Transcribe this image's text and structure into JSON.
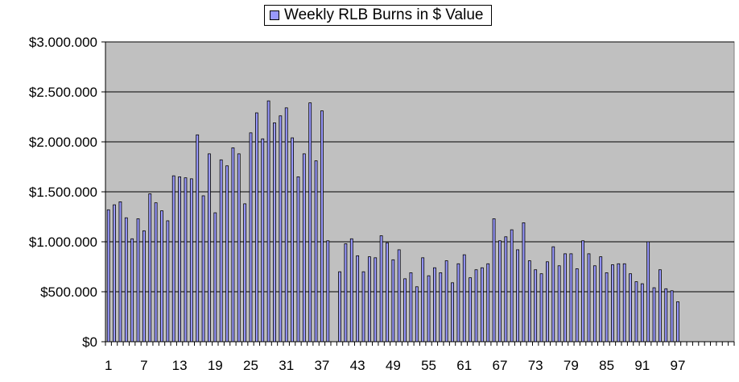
{
  "chart_data": {
    "type": "bar",
    "title": "",
    "xlabel": "",
    "ylabel": "",
    "legend": {
      "position": "top",
      "entries": [
        "Weekly RLB Burns in $ Value"
      ]
    },
    "series": [
      {
        "name": "Weekly RLB Burns in $ Value",
        "color": "#9999ff"
      }
    ],
    "plot_background": "#c0c0c0",
    "grid": true,
    "ylim": [
      0,
      3000000
    ],
    "y_ticks": [
      0,
      500000,
      1000000,
      1500000,
      2000000,
      2500000,
      3000000
    ],
    "y_tick_labels": [
      "$0",
      "$500.000",
      "$1.000.000",
      "$1.500.000",
      "$2.000.000",
      "$2.500.000",
      "$3.000.000"
    ],
    "x_range": [
      1,
      106
    ],
    "x_tick_labels": [
      "1",
      "7",
      "13",
      "19",
      "25",
      "31",
      "37",
      "43",
      "49",
      "55",
      "61",
      "67",
      "73",
      "79",
      "85",
      "91",
      "97"
    ],
    "x": [
      1,
      2,
      3,
      4,
      5,
      6,
      7,
      8,
      9,
      10,
      11,
      12,
      13,
      14,
      15,
      16,
      17,
      18,
      19,
      20,
      21,
      22,
      23,
      24,
      25,
      26,
      27,
      28,
      29,
      30,
      31,
      32,
      33,
      34,
      35,
      36,
      37,
      38,
      39,
      40,
      41,
      42,
      43,
      44,
      45,
      46,
      47,
      48,
      49,
      50,
      51,
      52,
      53,
      54,
      55,
      56,
      57,
      58,
      59,
      60,
      61,
      62,
      63,
      64,
      65,
      66,
      67,
      68,
      69,
      70,
      71,
      72,
      73,
      74,
      75,
      76,
      77,
      78,
      79,
      80,
      81,
      82,
      83,
      84,
      85,
      86,
      87,
      88,
      89,
      90,
      91,
      92,
      93,
      94,
      95,
      96,
      97
    ],
    "values": [
      1320000,
      1370000,
      1400000,
      1240000,
      1030000,
      1230000,
      1110000,
      1480000,
      1390000,
      1310000,
      1210000,
      1660000,
      1650000,
      1640000,
      1630000,
      2070000,
      1460000,
      1880000,
      1290000,
      1820000,
      1760000,
      1940000,
      1880000,
      1380000,
      2090000,
      2290000,
      2030000,
      2410000,
      2190000,
      2260000,
      2340000,
      2040000,
      1650000,
      1880000,
      2390000,
      1810000,
      2310000,
      1010000,
      0,
      700000,
      980000,
      1030000,
      860000,
      700000,
      850000,
      840000,
      1060000,
      990000,
      820000,
      920000,
      630000,
      690000,
      550000,
      840000,
      660000,
      740000,
      690000,
      810000,
      590000,
      780000,
      870000,
      640000,
      720000,
      740000,
      780000,
      1230000,
      1010000,
      1050000,
      1120000,
      920000,
      1190000,
      810000,
      720000,
      680000,
      800000,
      950000,
      760000,
      880000,
      880000,
      730000,
      1010000,
      880000,
      760000,
      850000,
      690000,
      770000,
      780000,
      780000,
      680000,
      600000,
      580000,
      1000000,
      540000,
      720000,
      530000,
      510000,
      400000
    ]
  }
}
